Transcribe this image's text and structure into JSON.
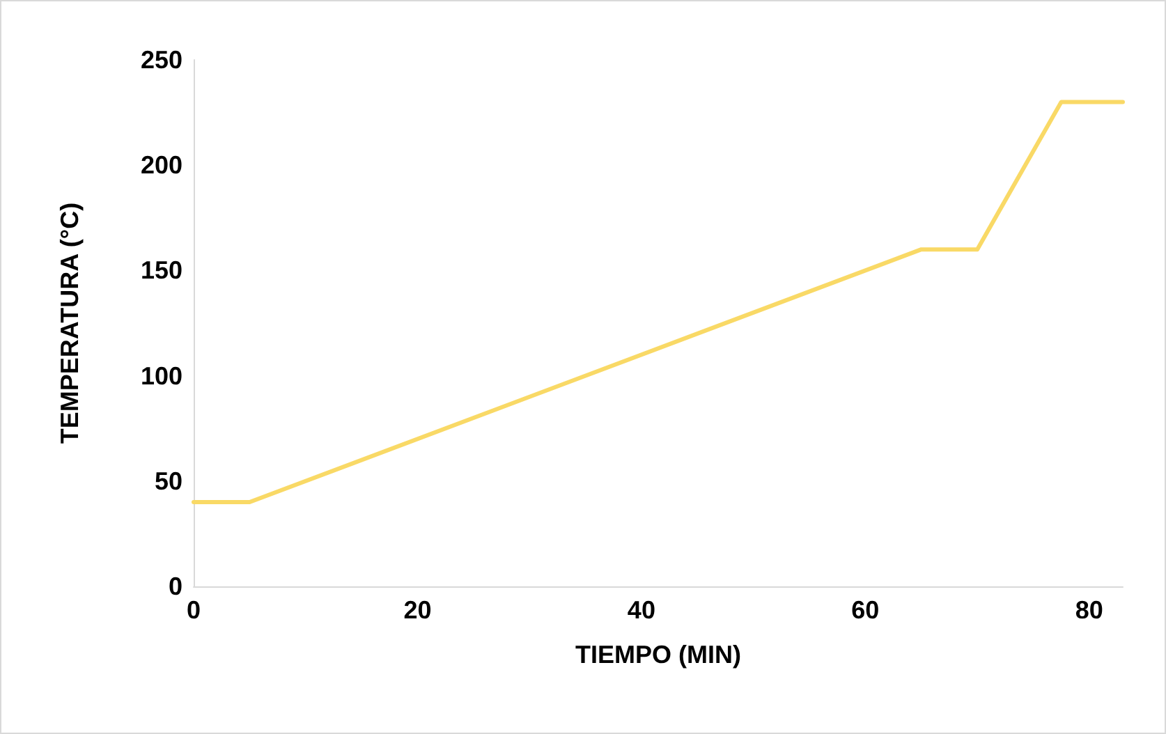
{
  "chart_data": {
    "type": "line",
    "xlabel": "TIEMPO (MIN)",
    "ylabel": "TEMPERATURA (°C)",
    "x": [
      0,
      5,
      65,
      70,
      77.5,
      83
    ],
    "series": [
      {
        "color": "#f9d966",
        "values": [
          40,
          40,
          160,
          160,
          230,
          230
        ]
      }
    ],
    "xlim": [
      0,
      83
    ],
    "xticks": [
      0,
      20,
      40,
      60,
      80
    ],
    "ylim": [
      0,
      250
    ],
    "yticks": [
      0,
      50,
      100,
      150,
      200,
      250
    ],
    "grid": false,
    "marker": "none",
    "line_style": "solid"
  }
}
